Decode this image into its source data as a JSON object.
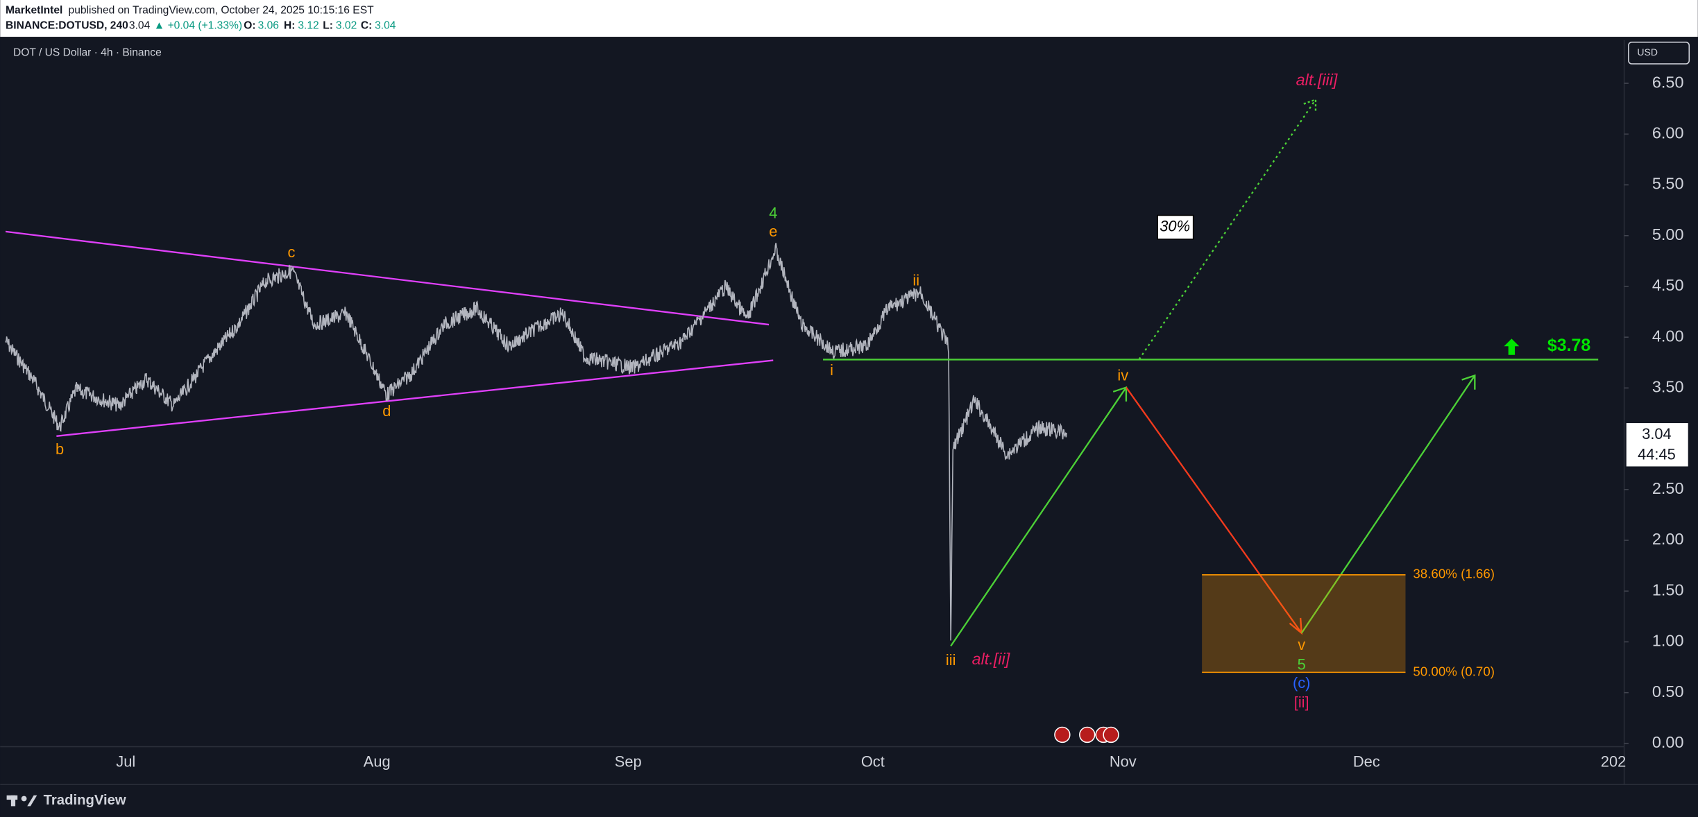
{
  "header": {
    "publisher": "MarketIntel",
    "published": "published on TradingView.com, October 24, 2025 10:15:16 EST",
    "symbol": "BINANCE:DOTUSD, 240",
    "last": "3.04",
    "change": "▲ +0.04 (+1.33%)",
    "open_label": "O:",
    "open": "3.06",
    "high_label": "H:",
    "high": "3.12",
    "low_label": "L:",
    "low": "3.02",
    "close_label": "C:",
    "close": "3.04"
  },
  "chart": {
    "legend": "DOT / US Dollar · 4h · Binance",
    "currency": "USD",
    "price_label": "3.04",
    "countdown": "44:45",
    "yticks": [
      {
        "value": 6.5,
        "label": "6.50"
      },
      {
        "value": 6,
        "label": "6.00"
      },
      {
        "value": 5.5,
        "label": "5.50"
      },
      {
        "value": 5,
        "label": "5.00"
      },
      {
        "value": 4.5,
        "label": "4.50"
      },
      {
        "value": 4,
        "label": "4.00"
      },
      {
        "value": 3.5,
        "label": "3.50"
      },
      {
        "value": 2.5,
        "label": "2.50"
      },
      {
        "value": 2,
        "label": "2.00"
      },
      {
        "value": 1.5,
        "label": "1.50"
      },
      {
        "value": 1,
        "label": "1.00"
      },
      {
        "value": 0.5,
        "label": "0.50"
      },
      {
        "value": 0,
        "label": "0.00"
      }
    ],
    "xlabels": [
      "Jul",
      "Aug",
      "Sep",
      "Oct",
      "Nov",
      "Dec",
      "202"
    ],
    "target_level": 3.78,
    "target_label": "$3.78",
    "fib": [
      {
        "value": 1.66,
        "label": "38.60% (1.66)"
      },
      {
        "value": 0.7,
        "label": "50.00% (0.70)"
      }
    ],
    "probability": "30%",
    "annotations": [
      "b",
      "c",
      "d",
      "4",
      "e",
      "ii",
      "i",
      "iii",
      "alt.[ii]",
      "iv",
      "v",
      "5",
      "(c)",
      "[ii]",
      "alt.[iii]"
    ]
  },
  "footer": {
    "brand": "TradingView"
  }
}
